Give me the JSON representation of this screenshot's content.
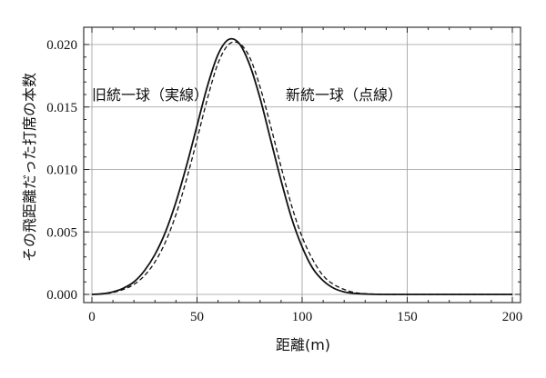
{
  "chart_data": {
    "type": "line",
    "xlabel": "距離(m)",
    "ylabel": "その飛距離だった打席の本数",
    "xlim": [
      0,
      200
    ],
    "ylim": [
      0.0,
      0.0205
    ],
    "xticks": [
      "0",
      "50",
      "100",
      "150",
      "200"
    ],
    "yticks": [
      "0.000",
      "0.005",
      "0.010",
      "0.015",
      "0.020"
    ],
    "grid": true,
    "series": [
      {
        "name": "旧統一球（実線）",
        "style": "solid",
        "x": [
          0,
          5,
          10,
          15,
          20,
          25,
          30,
          35,
          40,
          45,
          50,
          55,
          60,
          65,
          70,
          75,
          80,
          85,
          90,
          95,
          100,
          105,
          110,
          115,
          120,
          125,
          130,
          140,
          150,
          160,
          170,
          180,
          190,
          200
        ],
        "y": [
          0.0,
          5e-05,
          0.0002,
          0.0005,
          0.001,
          0.0019,
          0.0032,
          0.005,
          0.0074,
          0.0103,
          0.0135,
          0.0167,
          0.0192,
          0.0204,
          0.0201,
          0.0184,
          0.0157,
          0.0124,
          0.0091,
          0.0061,
          0.0038,
          0.0021,
          0.0011,
          0.0005,
          0.0002,
          8e-05,
          3e-05,
          0.0,
          0.0,
          0.0,
          0.0,
          0.0,
          0.0,
          0.0
        ]
      },
      {
        "name": "新統一球（点線）",
        "style": "dashed",
        "x": [
          0,
          5,
          10,
          15,
          20,
          25,
          30,
          35,
          40,
          45,
          50,
          55,
          60,
          65,
          70,
          75,
          80,
          85,
          90,
          95,
          100,
          105,
          110,
          115,
          120,
          125,
          130,
          140,
          150,
          160,
          170,
          180,
          190,
          200
        ],
        "y": [
          0.0,
          4e-05,
          0.00015,
          0.0004,
          0.0008,
          0.0015,
          0.0026,
          0.0042,
          0.0064,
          0.0092,
          0.0124,
          0.0157,
          0.0185,
          0.02,
          0.0201,
          0.019,
          0.0166,
          0.0135,
          0.0102,
          0.0071,
          0.0046,
          0.0028,
          0.0015,
          0.0008,
          0.0004,
          0.00015,
          6e-05,
          0.0,
          0.0,
          0.0,
          0.0,
          0.0,
          0.0,
          0.0
        ]
      }
    ],
    "annotations": [
      "旧統一球（実線）",
      "新統一球（点線）"
    ]
  }
}
